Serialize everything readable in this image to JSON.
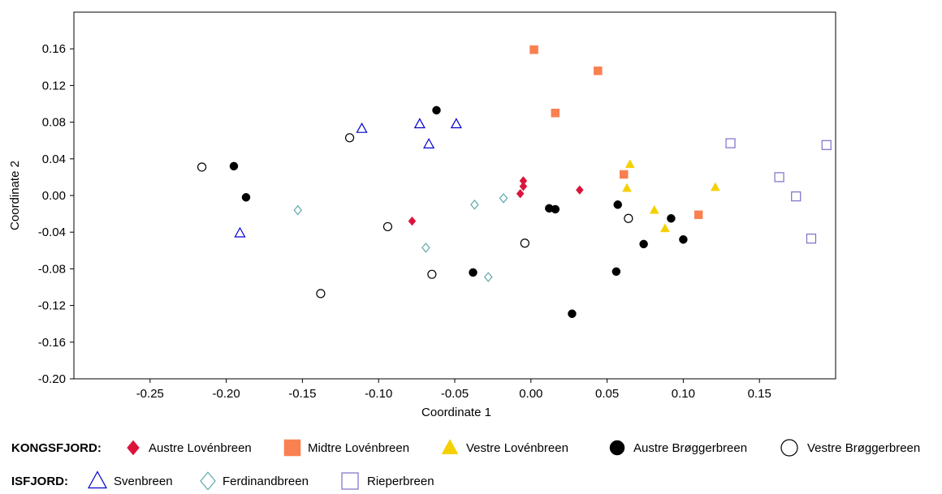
{
  "chart_data": {
    "type": "scatter",
    "xlabel": "Coordinate 1",
    "ylabel": "Coordinate 2",
    "xlim": [
      -0.3,
      0.2
    ],
    "ylim": [
      -0.2,
      0.2
    ],
    "x_ticks": [
      -0.25,
      -0.2,
      -0.15,
      -0.1,
      -0.05,
      0.0,
      0.05,
      0.1,
      0.15
    ],
    "y_ticks": [
      -0.2,
      -0.16,
      -0.12,
      -0.08,
      -0.04,
      0.0,
      0.04,
      0.08,
      0.12,
      0.16
    ],
    "x_tick_labels": [
      "-0.25",
      "-0.20",
      "-0.15",
      "-0.10",
      "-0.05",
      "0.00",
      "0.05",
      "0.10",
      "0.15"
    ],
    "y_tick_labels": [
      "-0.20",
      "-0.16",
      "-0.12",
      "-0.08",
      "-0.04",
      "0.00",
      "0.04",
      "0.08",
      "0.12",
      "0.16"
    ],
    "grid": false,
    "legend_position": "bottom",
    "series": [
      {
        "name": "Austre Lovénbreen",
        "group": "KONGSFJORD",
        "marker": "diamond-filled",
        "color": "#dc143c",
        "points": [
          [
            -0.005,
            0.016
          ],
          [
            -0.005,
            0.01
          ],
          [
            -0.007,
            0.002
          ],
          [
            0.032,
            0.006
          ],
          [
            -0.078,
            -0.028
          ]
        ]
      },
      {
        "name": "Midtre Lovénbreen",
        "group": "KONGSFJORD",
        "marker": "square-filled",
        "color": "#f98050",
        "points": [
          [
            0.002,
            0.159
          ],
          [
            0.044,
            0.136
          ],
          [
            0.016,
            0.09
          ],
          [
            0.061,
            0.023
          ],
          [
            0.11,
            -0.021
          ]
        ]
      },
      {
        "name": "Vestre Lovénbreen",
        "group": "KONGSFJORD",
        "marker": "triangle-filled",
        "color": "#f5d000",
        "points": [
          [
            0.065,
            0.034
          ],
          [
            0.063,
            0.008
          ],
          [
            0.121,
            0.009
          ],
          [
            0.081,
            -0.016
          ],
          [
            0.088,
            -0.036
          ]
        ]
      },
      {
        "name": "Austre Brøggerbreen",
        "group": "KONGSFJORD",
        "marker": "circle-filled",
        "color": "#000000",
        "points": [
          [
            -0.062,
            0.093
          ],
          [
            -0.195,
            0.032
          ],
          [
            -0.187,
            -0.002
          ],
          [
            0.012,
            -0.014
          ],
          [
            0.016,
            -0.015
          ],
          [
            0.057,
            -0.01
          ],
          [
            0.092,
            -0.025
          ],
          [
            0.1,
            -0.048
          ],
          [
            0.074,
            -0.053
          ],
          [
            0.056,
            -0.083
          ],
          [
            -0.038,
            -0.084
          ],
          [
            0.027,
            -0.129
          ]
        ]
      },
      {
        "name": "Vestre Brøggerbreen",
        "group": "KONGSFJORD",
        "marker": "circle-open",
        "color": "#000000",
        "points": [
          [
            -0.216,
            0.031
          ],
          [
            -0.119,
            0.063
          ],
          [
            -0.094,
            -0.034
          ],
          [
            -0.004,
            -0.052
          ],
          [
            0.064,
            -0.025
          ],
          [
            -0.065,
            -0.086
          ],
          [
            -0.138,
            -0.107
          ]
        ]
      },
      {
        "name": "Svenbreen",
        "group": "ISFJORD",
        "marker": "triangle-open",
        "color": "#0000cc",
        "points": [
          [
            -0.111,
            0.073
          ],
          [
            -0.073,
            0.078
          ],
          [
            -0.049,
            0.078
          ],
          [
            -0.067,
            0.056
          ],
          [
            -0.191,
            -0.041
          ]
        ]
      },
      {
        "name": "Ferdinandbreen",
        "group": "ISFJORD",
        "marker": "diamond-open",
        "color": "#5fa8a8",
        "points": [
          [
            -0.153,
            -0.016
          ],
          [
            -0.037,
            -0.01
          ],
          [
            -0.018,
            -0.003
          ],
          [
            -0.069,
            -0.057
          ],
          [
            -0.028,
            -0.089
          ]
        ]
      },
      {
        "name": "Rieperbreen",
        "group": "ISFJORD",
        "marker": "square-open",
        "color": "#7b6fc8",
        "points": [
          [
            0.131,
            0.057
          ],
          [
            0.194,
            0.055
          ],
          [
            0.163,
            0.02
          ],
          [
            0.174,
            -0.001
          ],
          [
            0.184,
            -0.047
          ]
        ]
      }
    ],
    "legend": {
      "groups": [
        {
          "label": "KONGSFJORD:",
          "items": [
            "Austre Lovénbreen",
            "Midtre Lovénbreen",
            "Vestre Lovénbreen",
            "Austre Brøggerbreen",
            "Vestre Brøggerbreen"
          ]
        },
        {
          "label": "ISFJORD:",
          "items": [
            "Svenbreen",
            "Ferdinandbreen",
            "Rieperbreen"
          ]
        }
      ]
    }
  }
}
